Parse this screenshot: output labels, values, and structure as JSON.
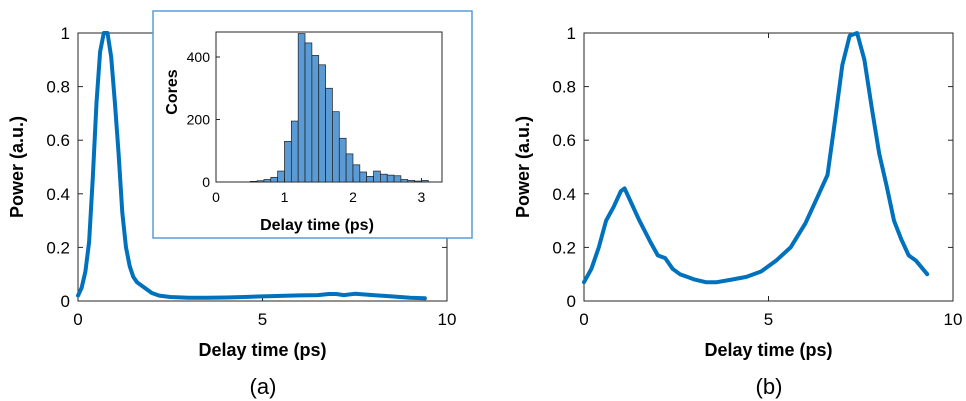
{
  "chart_data": [
    {
      "panel": "(a)",
      "type": "line",
      "title": "",
      "xlabel": "Delay time (ps)",
      "ylabel": "Power (a.u.)",
      "xlim": [
        0,
        10
      ],
      "ylim": [
        0,
        1
      ],
      "xticks": [
        "0",
        "5",
        "10"
      ],
      "yticks": [
        "0",
        "0.2",
        "0.4",
        "0.6",
        "0.8",
        "1"
      ],
      "grid": false,
      "color": "#0072BD",
      "x": [
        0,
        0.1,
        0.2,
        0.3,
        0.4,
        0.5,
        0.6,
        0.7,
        0.8,
        0.9,
        1.0,
        1.1,
        1.2,
        1.3,
        1.4,
        1.5,
        1.6,
        1.8,
        2.0,
        2.2,
        2.5,
        3.0,
        3.5,
        4.0,
        4.5,
        5.0,
        5.5,
        6.0,
        6.5,
        6.8,
        7.0,
        7.2,
        7.5,
        8.0,
        8.5,
        9.0,
        9.4
      ],
      "y": [
        0.02,
        0.05,
        0.11,
        0.22,
        0.46,
        0.74,
        0.93,
        1.0,
        1.0,
        0.91,
        0.74,
        0.55,
        0.33,
        0.2,
        0.13,
        0.09,
        0.07,
        0.05,
        0.03,
        0.02,
        0.015,
        0.012,
        0.012,
        0.013,
        0.015,
        0.017,
        0.019,
        0.021,
        0.022,
        0.026,
        0.026,
        0.022,
        0.027,
        0.022,
        0.017,
        0.012,
        0.01
      ]
    },
    {
      "panel": "(a) inset",
      "type": "bar",
      "title": "",
      "xlabel": "Delay time (ps)",
      "ylabel": "Cores",
      "xlim": [
        0,
        3.3
      ],
      "ylim": [
        0,
        480
      ],
      "xticks": [
        "0",
        "1",
        "2",
        "3"
      ],
      "yticks": [
        "0",
        "200",
        "400"
      ],
      "bin_width": 0.1,
      "bin_starts": [
        0.5,
        0.6,
        0.7,
        0.8,
        0.9,
        1.0,
        1.1,
        1.2,
        1.3,
        1.4,
        1.5,
        1.6,
        1.7,
        1.8,
        1.9,
        2.0,
        2.1,
        2.2,
        2.3,
        2.4,
        2.5,
        2.6,
        2.7,
        2.8,
        2.9,
        3.0
      ],
      "values": [
        2,
        4,
        8,
        15,
        35,
        130,
        195,
        475,
        445,
        405,
        375,
        300,
        225,
        140,
        90,
        55,
        32,
        18,
        35,
        25,
        22,
        20,
        8,
        5,
        3,
        5
      ],
      "color": "#5B9BD5"
    },
    {
      "panel": "(b)",
      "type": "line",
      "title": "",
      "xlabel": "Delay time (ps)",
      "ylabel": "Power (a.u.)",
      "xlim": [
        0,
        10
      ],
      "ylim": [
        0,
        1
      ],
      "xticks": [
        "0",
        "5",
        "10"
      ],
      "yticks": [
        "0",
        "0.2",
        "0.4",
        "0.6",
        "0.8",
        "1"
      ],
      "grid": false,
      "color": "#0072BD",
      "x": [
        0,
        0.2,
        0.4,
        0.6,
        0.8,
        1.0,
        1.1,
        1.3,
        1.5,
        1.8,
        2.0,
        2.2,
        2.4,
        2.6,
        2.8,
        3.0,
        3.3,
        3.6,
        4.0,
        4.4,
        4.8,
        5.2,
        5.6,
        6.0,
        6.3,
        6.6,
        6.8,
        7.0,
        7.2,
        7.4,
        7.6,
        7.8,
        8.0,
        8.2,
        8.4,
        8.6,
        8.8,
        9.0,
        9.3
      ],
      "y": [
        0.07,
        0.12,
        0.2,
        0.3,
        0.35,
        0.41,
        0.42,
        0.36,
        0.3,
        0.22,
        0.17,
        0.16,
        0.12,
        0.1,
        0.09,
        0.08,
        0.07,
        0.07,
        0.08,
        0.09,
        0.11,
        0.15,
        0.2,
        0.29,
        0.38,
        0.47,
        0.67,
        0.88,
        0.99,
        1.0,
        0.9,
        0.72,
        0.55,
        0.43,
        0.3,
        0.23,
        0.17,
        0.15,
        0.1
      ]
    }
  ],
  "captions": [
    "(a)",
    "(b)"
  ]
}
